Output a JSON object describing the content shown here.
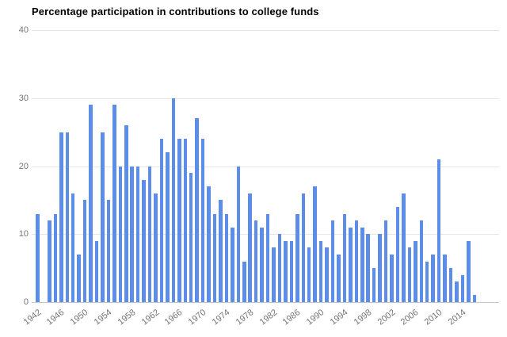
{
  "title": "Percentage participation in contributions to college funds",
  "colors": {
    "bar": "#5c8de8",
    "grid": "#e6e6e6",
    "baseline": "#c7c7c7",
    "axis_text": "#757575",
    "title_text": "#000000",
    "background": "#ffffff"
  },
  "chart_data": {
    "type": "bar",
    "title": "Percentage participation in contributions to college funds",
    "xlabel": "",
    "ylabel": "",
    "ylim": [
      0,
      40
    ],
    "yticks": [
      0,
      10,
      20,
      30,
      40
    ],
    "xticks": [
      1942,
      1946,
      1950,
      1954,
      1958,
      1962,
      1966,
      1970,
      1974,
      1978,
      1982,
      1986,
      1990,
      1994,
      1998,
      2002,
      2006,
      2010,
      2014
    ],
    "grid": true,
    "legend_position": "none",
    "categories": [
      1942,
      1943,
      1944,
      1945,
      1946,
      1947,
      1948,
      1949,
      1950,
      1951,
      1952,
      1953,
      1954,
      1955,
      1956,
      1957,
      1958,
      1959,
      1960,
      1961,
      1962,
      1963,
      1964,
      1965,
      1966,
      1967,
      1968,
      1969,
      1970,
      1971,
      1972,
      1973,
      1974,
      1975,
      1976,
      1977,
      1978,
      1979,
      1980,
      1981,
      1982,
      1983,
      1984,
      1985,
      1986,
      1987,
      1988,
      1989,
      1990,
      1991,
      1992,
      1993,
      1994,
      1995,
      1996,
      1997,
      1998,
      1999,
      2000,
      2001,
      2002,
      2003,
      2004,
      2005,
      2006,
      2007,
      2008,
      2009,
      2010,
      2011,
      2012,
      2013,
      2014,
      2015,
      2016
    ],
    "values": [
      13,
      0,
      12,
      13,
      25,
      25,
      16,
      7,
      15,
      29,
      9,
      25,
      15,
      29,
      20,
      26,
      20,
      20,
      18,
      20,
      16,
      24,
      22,
      30,
      24,
      24,
      19,
      27,
      24,
      17,
      13,
      15,
      13,
      11,
      20,
      6,
      16,
      12,
      11,
      13,
      8,
      10,
      9,
      9,
      13,
      16,
      8,
      17,
      9,
      8,
      12,
      7,
      13,
      11,
      12,
      11,
      10,
      5,
      10,
      12,
      7,
      14,
      16,
      8,
      9,
      12,
      6,
      7,
      21,
      7,
      5,
      3,
      4,
      9,
      1
    ]
  }
}
